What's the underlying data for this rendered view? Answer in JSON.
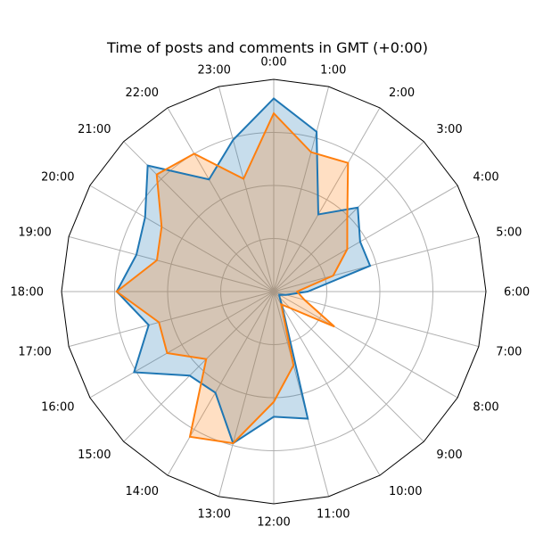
{
  "chart_data": {
    "type": "radar",
    "title": "Time of posts and comments in GMT (+0:00)",
    "categories": [
      "0:00",
      "1:00",
      "2:00",
      "3:00",
      "4:00",
      "5:00",
      "6:00",
      "7:00",
      "8:00",
      "9:00",
      "10:00",
      "11:00",
      "12:00",
      "13:00",
      "14:00",
      "15:00",
      "16:00",
      "17:00",
      "18:00",
      "19:00",
      "20:00",
      "21:00",
      "22:00",
      "23:00"
    ],
    "rmax": 1.0,
    "grid": true,
    "direction": "clockwise",
    "start_angle": "top",
    "series": [
      {
        "color": "#1f77b4",
        "values": [
          0.91,
          0.78,
          0.42,
          0.56,
          0.47,
          0.47,
          0.16,
          0.06,
          0.03,
          0.04,
          0.08,
          0.62,
          0.59,
          0.74,
          0.55,
          0.56,
          0.76,
          0.61,
          0.74,
          0.67,
          0.7,
          0.84,
          0.61,
          0.74
        ]
      },
      {
        "color": "#ff7f0e",
        "values": [
          0.84,
          0.68,
          0.7,
          0.49,
          0.4,
          0.29,
          0.11,
          0.15,
          0.33,
          0.11,
          0.07,
          0.36,
          0.52,
          0.74,
          0.79,
          0.45,
          0.58,
          0.56,
          0.74,
          0.57,
          0.61,
          0.78,
          0.75,
          0.55
        ]
      }
    ]
  }
}
